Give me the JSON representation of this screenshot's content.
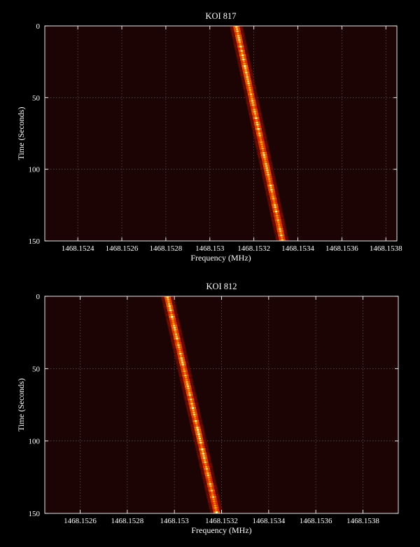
{
  "chart_data": [
    {
      "type": "heatmap",
      "title": "KOI 817",
      "xlabel": "Frequency (MHz)",
      "ylabel": "Time (Seconds)",
      "xlim": [
        1468.15225,
        1468.15385
      ],
      "ylim": [
        0,
        150
      ],
      "y_inverted": true,
      "grid": true,
      "colormap": "hot",
      "x_ticks": [
        1468.1524,
        1468.1526,
        1468.1528,
        1468.153,
        1468.1532,
        1468.1534,
        1468.1536,
        1468.1538
      ],
      "x_tick_labels": [
        "1468.1524",
        "1468.1526",
        "1468.1528",
        "1468.153",
        "1468.1532",
        "1468.1534",
        "1468.1536",
        "1468.1538"
      ],
      "y_ticks": [
        0,
        50,
        100,
        150
      ],
      "y_tick_labels": [
        "0",
        "50",
        "100",
        "150"
      ],
      "signal_track": {
        "time": [
          0,
          150
        ],
        "frequency": [
          1468.15312,
          1468.15333
        ]
      }
    },
    {
      "type": "heatmap",
      "title": "KOI 812",
      "xlabel": "Frequency (MHz)",
      "ylabel": "Time (Seconds)",
      "xlim": [
        1468.15245,
        1468.15395
      ],
      "ylim": [
        0,
        150
      ],
      "y_inverted": true,
      "grid": true,
      "colormap": "hot",
      "x_ticks": [
        1468.1526,
        1468.1528,
        1468.153,
        1468.1532,
        1468.1534,
        1468.1536,
        1468.1538
      ],
      "x_tick_labels": [
        "1468.1526",
        "1468.1528",
        "1468.153",
        "1468.1532",
        "1468.1534",
        "1468.1536",
        "1468.1538"
      ],
      "y_ticks": [
        0,
        50,
        100,
        150
      ],
      "y_tick_labels": [
        "0",
        "50",
        "100",
        "150"
      ],
      "signal_track": {
        "time": [
          0,
          150
        ],
        "frequency": [
          1468.15297,
          1468.15318
        ]
      }
    }
  ]
}
